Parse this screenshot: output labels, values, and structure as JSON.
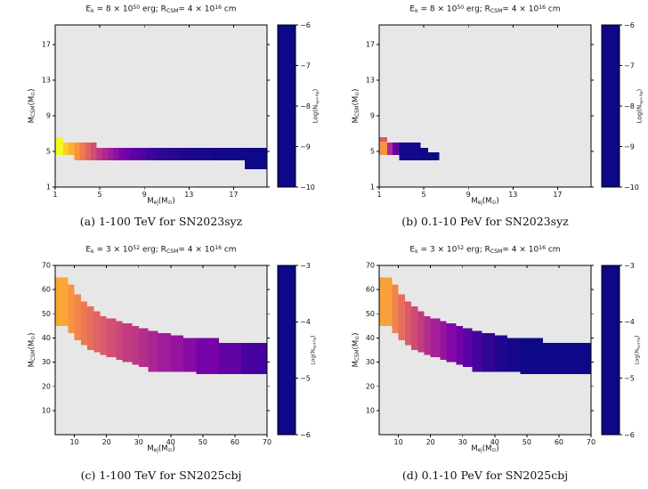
{
  "figure_bg": "#ffffff",
  "panel_bg": "#e7e7e7",
  "frame_color": "#000000",
  "colormap": "plasma",
  "colormap_stops": [
    [
      0.0,
      "#0d0887"
    ],
    [
      0.125,
      "#4b03a1"
    ],
    [
      0.25,
      "#7d03a8"
    ],
    [
      0.375,
      "#a82296"
    ],
    [
      0.5,
      "#cb4679"
    ],
    [
      0.625,
      "#e56b5d"
    ],
    [
      0.75,
      "#f89441"
    ],
    [
      0.875,
      "#fdc328"
    ],
    [
      1.0,
      "#f0f921"
    ]
  ],
  "chart_data": [
    {
      "id": "a",
      "type": "heatmap",
      "caption": "(a) 1-100 TeV for SN2023syz",
      "title_parts": [
        {
          "t": "E"
        },
        {
          "t": "k",
          "sub": true
        },
        {
          "t": " = 8 × 10"
        },
        {
          "t": "50",
          "sup": true
        },
        {
          "t": " erg; R"
        },
        {
          "t": "CSM",
          "sub": true
        },
        {
          "t": "= 4 × 10"
        },
        {
          "t": "16",
          "sup": true
        },
        {
          "t": " cm"
        }
      ],
      "xlabel_parts": [
        {
          "t": "M"
        },
        {
          "t": "ej",
          "sub": true
        },
        {
          "t": "(M"
        },
        {
          "t": "⊙",
          "sub": true
        },
        {
          "t": ")"
        }
      ],
      "ylabel_parts": [
        {
          "t": "M"
        },
        {
          "t": "CSM",
          "sub": true
        },
        {
          "t": "(M"
        },
        {
          "t": "⊙",
          "sub": true
        },
        {
          "t": ")"
        }
      ],
      "x": {
        "min": 1,
        "max": 20,
        "ticks": [
          1,
          5,
          9,
          13,
          17
        ]
      },
      "y": {
        "min": 1,
        "max": 19.2,
        "ticks": [
          1,
          5,
          9,
          13,
          17
        ]
      },
      "colorbar": {
        "vmin": -10,
        "vmax": -6,
        "ticks": [
          -6,
          -7,
          -8,
          -9,
          -10
        ],
        "label_parts": [
          {
            "t": "Log(N"
          },
          {
            "t": "νμ+ν̄μ",
            "sub": true
          },
          {
            "t": ")"
          }
        ]
      },
      "cells": [
        [
          1.0,
          1.7,
          4.6,
          6.6,
          -6.0
        ],
        [
          1.7,
          2.2,
          4.6,
          6.0,
          -6.4
        ],
        [
          2.2,
          2.7,
          4.6,
          6.0,
          -6.7
        ],
        [
          2.7,
          3.2,
          4.0,
          6.0,
          -7.0
        ],
        [
          3.2,
          3.7,
          4.0,
          6.0,
          -7.3
        ],
        [
          3.7,
          4.2,
          4.0,
          6.0,
          -7.6
        ],
        [
          4.2,
          4.7,
          4.0,
          6.0,
          -7.9
        ],
        [
          4.7,
          5.2,
          4.0,
          5.4,
          -8.2
        ],
        [
          5.2,
          5.7,
          4.0,
          5.4,
          -8.4
        ],
        [
          5.7,
          6.2,
          4.0,
          5.4,
          -8.6
        ],
        [
          6.2,
          6.7,
          4.0,
          5.4,
          -8.8
        ],
        [
          6.7,
          7.2,
          4.0,
          5.4,
          -9.0
        ],
        [
          7.2,
          7.7,
          4.0,
          5.4,
          -9.15
        ],
        [
          7.7,
          8.2,
          4.0,
          5.4,
          -9.3
        ],
        [
          8.2,
          8.7,
          4.0,
          5.4,
          -9.4
        ],
        [
          8.7,
          9.2,
          4.0,
          5.4,
          -9.5
        ],
        [
          9.2,
          9.7,
          4.0,
          5.4,
          -9.6
        ],
        [
          9.7,
          10.2,
          4.0,
          5.4,
          -9.65
        ],
        [
          10.2,
          11.2,
          4.0,
          5.4,
          -9.75
        ],
        [
          11.2,
          12.2,
          4.0,
          5.4,
          -9.8
        ],
        [
          12.2,
          13.2,
          4.0,
          5.4,
          -9.85
        ],
        [
          13.2,
          15.0,
          4.0,
          5.4,
          -9.9
        ],
        [
          15.0,
          18.0,
          4.0,
          5.4,
          -9.95
        ],
        [
          18.0,
          20.0,
          3.0,
          5.4,
          -10.0
        ]
      ]
    },
    {
      "id": "b",
      "type": "heatmap",
      "caption": "(b) 0.1-10 PeV for SN2023syz",
      "title_parts": [
        {
          "t": "E"
        },
        {
          "t": "k",
          "sub": true
        },
        {
          "t": " = 8 × 10"
        },
        {
          "t": "50",
          "sup": true
        },
        {
          "t": " erg; R"
        },
        {
          "t": "CSM",
          "sub": true
        },
        {
          "t": "= 4 × 10"
        },
        {
          "t": "16",
          "sup": true
        },
        {
          "t": " cm"
        }
      ],
      "xlabel_parts": [
        {
          "t": "M"
        },
        {
          "t": "ej",
          "sub": true
        },
        {
          "t": "(M"
        },
        {
          "t": "⊙",
          "sub": true
        },
        {
          "t": ")"
        }
      ],
      "ylabel_parts": [
        {
          "t": "M"
        },
        {
          "t": "CSM",
          "sub": true
        },
        {
          "t": "(M"
        },
        {
          "t": "⊙",
          "sub": true
        },
        {
          "t": ")"
        }
      ],
      "x": {
        "min": 1,
        "max": 20,
        "ticks": [
          1,
          5,
          9,
          13,
          17
        ]
      },
      "y": {
        "min": 1,
        "max": 19.2,
        "ticks": [
          1,
          5,
          9,
          13,
          17
        ]
      },
      "colorbar": {
        "vmin": -10,
        "vmax": -6,
        "ticks": [
          -6,
          -7,
          -8,
          -9,
          -10
        ],
        "label_parts": [
          {
            "t": "Log(N"
          },
          {
            "t": "νμ+ν̄μ",
            "sub": true
          },
          {
            "t": ")"
          }
        ]
      },
      "cells": [
        [
          1.0,
          1.7,
          4.6,
          6.1,
          -7.0
        ],
        [
          1.0,
          1.7,
          6.1,
          6.6,
          -7.7
        ],
        [
          1.7,
          2.2,
          4.6,
          6.0,
          -8.4
        ],
        [
          2.2,
          2.8,
          4.6,
          6.0,
          -9.3
        ],
        [
          2.8,
          4.7,
          4.0,
          6.0,
          -9.95
        ],
        [
          4.7,
          5.4,
          4.0,
          5.4,
          -10.0
        ],
        [
          5.4,
          6.4,
          4.0,
          4.9,
          -10.0
        ]
      ]
    },
    {
      "id": "c",
      "type": "heatmap",
      "caption": "(c) 1-100 TeV for SN2025cbj",
      "title_parts": [
        {
          "t": "E"
        },
        {
          "t": "k",
          "sub": true
        },
        {
          "t": " = 3 × 10"
        },
        {
          "t": "52",
          "sup": true
        },
        {
          "t": " erg; R"
        },
        {
          "t": "CSM",
          "sub": true
        },
        {
          "t": "= 4 × 10"
        },
        {
          "t": "16",
          "sup": true
        },
        {
          "t": " cm"
        }
      ],
      "xlabel_parts": [
        {
          "t": "M"
        },
        {
          "t": "ej",
          "sub": true
        },
        {
          "t": "(M"
        },
        {
          "t": "⊙",
          "sub": true
        },
        {
          "t": ")"
        }
      ],
      "ylabel_parts": [
        {
          "t": "M"
        },
        {
          "t": "CSM",
          "sub": true
        },
        {
          "t": "(M"
        },
        {
          "t": "⊙",
          "sub": true
        },
        {
          "t": ")"
        }
      ],
      "x": {
        "min": 4,
        "max": 70,
        "ticks": [
          10,
          20,
          30,
          40,
          50,
          60,
          70
        ]
      },
      "y": {
        "min": 0,
        "max": 70,
        "ticks": [
          10,
          20,
          30,
          40,
          50,
          60,
          70
        ]
      },
      "colorbar": {
        "vmin": -6,
        "vmax": -3,
        "ticks": [
          -3,
          -4,
          -5,
          -6
        ],
        "label_parts": [
          {
            "t": "Log(N"
          },
          {
            "t": "νμ+ν̄μ",
            "sub": true
          },
          {
            "t": ")"
          }
        ]
      },
      "cells": [
        [
          4,
          8,
          45,
          65,
          -3.6
        ],
        [
          8,
          10,
          42,
          62,
          -3.75
        ],
        [
          10,
          12,
          39,
          58,
          -3.9
        ],
        [
          12,
          14,
          37,
          55,
          -4.0
        ],
        [
          14,
          16,
          35,
          53,
          -4.1
        ],
        [
          16,
          18,
          34,
          51,
          -4.2
        ],
        [
          18,
          20,
          33,
          49,
          -4.3
        ],
        [
          20,
          23,
          32,
          48,
          -4.4
        ],
        [
          23,
          25,
          31,
          47,
          -4.5
        ],
        [
          25,
          28,
          30,
          46,
          -4.6
        ],
        [
          28,
          30,
          29,
          45,
          -4.65
        ],
        [
          30,
          33,
          28,
          44,
          -4.75
        ],
        [
          33,
          36,
          26,
          43,
          -4.85
        ],
        [
          36,
          40,
          26,
          42,
          -4.95
        ],
        [
          40,
          44,
          26,
          41,
          -5.05
        ],
        [
          44,
          48,
          26,
          40,
          -5.15
        ],
        [
          48,
          55,
          25,
          40,
          -5.3
        ],
        [
          55,
          62,
          25,
          38,
          -5.45
        ],
        [
          62,
          70,
          25,
          38,
          -5.65
        ]
      ]
    },
    {
      "id": "d",
      "type": "heatmap",
      "caption": "(d) 0.1-10 PeV for SN2025cbj",
      "title_parts": [
        {
          "t": "E"
        },
        {
          "t": "k",
          "sub": true
        },
        {
          "t": " = 3 × 10"
        },
        {
          "t": "52",
          "sup": true
        },
        {
          "t": " erg; R"
        },
        {
          "t": "CSM",
          "sub": true
        },
        {
          "t": "= 4 × 10"
        },
        {
          "t": "16",
          "sup": true
        },
        {
          "t": " cm"
        }
      ],
      "xlabel_parts": [
        {
          "t": "M"
        },
        {
          "t": "ej",
          "sub": true
        },
        {
          "t": "(M"
        },
        {
          "t": "⊙",
          "sub": true
        },
        {
          "t": ")"
        }
      ],
      "ylabel_parts": [
        {
          "t": "M"
        },
        {
          "t": "CSM",
          "sub": true
        },
        {
          "t": "(M"
        },
        {
          "t": "⊙",
          "sub": true
        },
        {
          "t": ")"
        }
      ],
      "x": {
        "min": 4,
        "max": 70,
        "ticks": [
          10,
          20,
          30,
          40,
          50,
          60,
          70
        ]
      },
      "y": {
        "min": 0,
        "max": 70,
        "ticks": [
          10,
          20,
          30,
          40,
          50,
          60,
          70
        ]
      },
      "colorbar": {
        "vmin": -6,
        "vmax": -3,
        "ticks": [
          -3,
          -4,
          -5,
          -6
        ],
        "label_parts": [
          {
            "t": "Log(N"
          },
          {
            "t": "νμ+ν̄μ",
            "sub": true
          },
          {
            "t": ")"
          }
        ]
      },
      "cells": [
        [
          4,
          8,
          45,
          65,
          -3.65
        ],
        [
          8,
          10,
          42,
          62,
          -3.9
        ],
        [
          10,
          12,
          39,
          58,
          -4.1
        ],
        [
          12,
          14,
          37,
          55,
          -4.3
        ],
        [
          14,
          16,
          35,
          53,
          -4.45
        ],
        [
          16,
          18,
          34,
          51,
          -4.6
        ],
        [
          18,
          20,
          33,
          49,
          -4.75
        ],
        [
          20,
          23,
          32,
          48,
          -4.9
        ],
        [
          23,
          25,
          31,
          47,
          -5.05
        ],
        [
          25,
          28,
          30,
          46,
          -5.2
        ],
        [
          28,
          30,
          29,
          45,
          -5.35
        ],
        [
          30,
          33,
          28,
          44,
          -5.5
        ],
        [
          33,
          36,
          26,
          43,
          -5.65
        ],
        [
          36,
          40,
          26,
          42,
          -5.8
        ],
        [
          40,
          44,
          26,
          41,
          -5.9
        ],
        [
          44,
          48,
          26,
          40,
          -5.95
        ],
        [
          48,
          55,
          25,
          40,
          -6.0
        ],
        [
          55,
          62,
          25,
          38,
          -6.0
        ],
        [
          62,
          70,
          25,
          38,
          -6.0
        ]
      ]
    }
  ]
}
